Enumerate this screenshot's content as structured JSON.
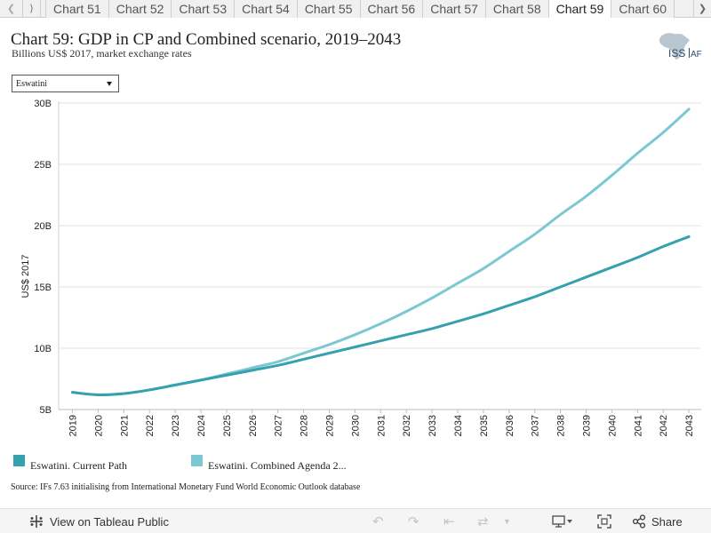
{
  "tabs": {
    "items": [
      "Chart 51",
      "Chart 52",
      "Chart 53",
      "Chart 54",
      "Chart 55",
      "Chart 56",
      "Chart 57",
      "Chart 58",
      "Chart 59",
      "Chart 60"
    ],
    "active_index": 8
  },
  "header": {
    "title": "Chart 59: GDP in CP and Combined scenario, 2019–2043",
    "subtitle": "Billions US$ 2017, market exchange rates",
    "logo_text_left": "ISS",
    "logo_text_right": "AFI"
  },
  "filter": {
    "selected": "Eswatini"
  },
  "chart_data": {
    "type": "line",
    "x": [
      2019,
      2020,
      2021,
      2022,
      2023,
      2024,
      2025,
      2026,
      2027,
      2028,
      2029,
      2030,
      2031,
      2032,
      2033,
      2034,
      2035,
      2036,
      2037,
      2038,
      2039,
      2040,
      2041,
      2042,
      2043
    ],
    "x_tick_labels": [
      "2019",
      "2020",
      "2021",
      "2022",
      "2023",
      "2024",
      "2025",
      "2026",
      "2027",
      "2028",
      "2029",
      "2030",
      "2031",
      "2032",
      "2033",
      "2034",
      "2035",
      "2036",
      "2037",
      "2038",
      "2039",
      "2040",
      "2041",
      "2042",
      "2043"
    ],
    "ylabel": "US$ 2017",
    "ylim": [
      5,
      30
    ],
    "y_ticks": [
      5,
      10,
      15,
      20,
      25,
      30
    ],
    "y_tick_labels": [
      "5B",
      "10B",
      "15B",
      "20B",
      "25B",
      "30B"
    ],
    "grid": "horizontal",
    "legend_position": "bottom",
    "series": [
      {
        "name": "Eswatini. Current Path",
        "color": "#35a1ad",
        "values": [
          6.4,
          6.2,
          6.3,
          6.6,
          7.0,
          7.4,
          7.8,
          8.2,
          8.6,
          9.1,
          9.6,
          10.1,
          10.6,
          11.1,
          11.6,
          12.2,
          12.8,
          13.5,
          14.2,
          15.0,
          15.8,
          16.6,
          17.4,
          18.3,
          19.1
        ]
      },
      {
        "name": "Eswatini. Combined Agenda 2...",
        "color": "#7cc8d2",
        "values": [
          6.4,
          6.2,
          6.3,
          6.6,
          7.0,
          7.4,
          7.9,
          8.4,
          8.9,
          9.6,
          10.3,
          11.1,
          12.0,
          13.0,
          14.1,
          15.3,
          16.5,
          17.9,
          19.3,
          20.9,
          22.4,
          24.1,
          25.9,
          27.6,
          29.5
        ]
      }
    ]
  },
  "source": "Source: IFs 7.63 initialising from International Monetary Fund World Economic Outlook database",
  "toolbar": {
    "view_label": "View on Tableau Public",
    "share_label": "Share",
    "icons": [
      "tableau-logo-icon",
      "undo-icon",
      "redo-icon",
      "revert-icon",
      "refresh-icon",
      "pause-dropdown-icon",
      "download-icon",
      "fullscreen-icon",
      "share-icon"
    ]
  }
}
